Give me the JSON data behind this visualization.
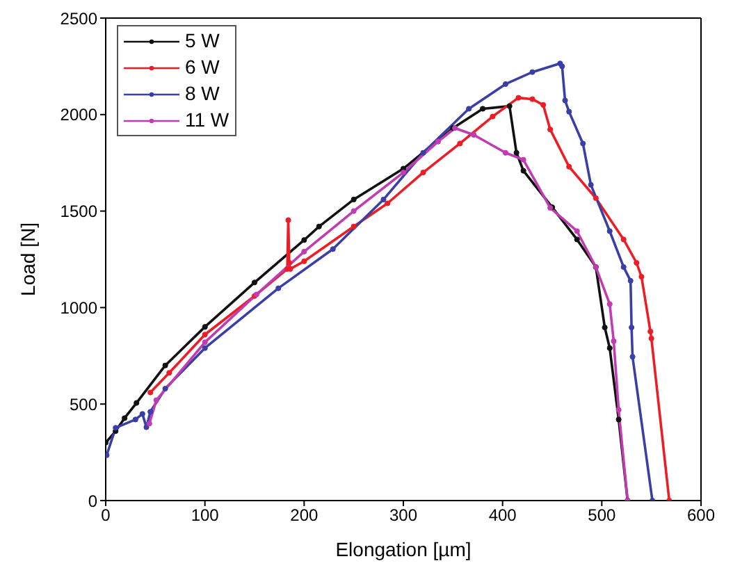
{
  "chart_data": {
    "type": "line",
    "xlabel": "Elongation [µm]",
    "ylabel": "Load [N]",
    "xlim": [
      0,
      600
    ],
    "ylim": [
      0,
      2500
    ],
    "xticks": [
      0,
      100,
      200,
      300,
      400,
      500,
      600
    ],
    "yticks": [
      0,
      500,
      1000,
      1500,
      2000,
      2500
    ],
    "legend": "top left",
    "marker": "circle",
    "line_style": "solid",
    "series": [
      {
        "name": "5 W",
        "color": "#111111",
        "x": [
          0,
          10,
          19,
          31,
          60,
          100,
          150,
          200,
          215,
          250,
          300,
          350,
          380,
          407,
          414,
          421,
          450,
          475,
          494,
          503,
          508,
          517,
          526
        ],
        "values": [
          300,
          360,
          427,
          506,
          700,
          900,
          1130,
          1350,
          1420,
          1560,
          1720,
          1930,
          2030,
          2044,
          1802,
          1709,
          1520,
          1353,
          1210,
          897,
          790,
          420,
          0
        ]
      },
      {
        "name": "6 W",
        "color": "#ee1c24",
        "x": [
          45,
          64,
          100,
          150,
          183,
          184,
          185,
          186,
          200,
          250,
          284,
          320,
          357,
          390,
          416,
          430,
          441,
          448,
          467,
          494,
          522,
          535,
          540,
          549,
          550,
          568
        ],
        "values": [
          560,
          662,
          860,
          1060,
          1200,
          1453,
          1232,
          1200,
          1240,
          1420,
          1540,
          1700,
          1850,
          1990,
          2087,
          2080,
          2050,
          1923,
          1730,
          1567,
          1353,
          1232,
          1160,
          876,
          840,
          0
        ]
      },
      {
        "name": "8 W",
        "color": "#3a3fa8",
        "x": [
          1,
          10,
          30,
          37,
          41,
          45,
          60,
          100,
          174,
          229,
          280,
          320,
          366,
          403,
          430,
          458,
          460,
          463,
          467,
          481,
          489,
          508,
          522,
          529,
          530,
          531,
          551
        ],
        "values": [
          235,
          377,
          420,
          449,
          380,
          460,
          580,
          790,
          1100,
          1303,
          1560,
          1802,
          2030,
          2158,
          2220,
          2265,
          2250,
          2073,
          2015,
          1850,
          1636,
          1396,
          1210,
          1139,
          897,
          745,
          0
        ]
      },
      {
        "name": "11 W",
        "color": "#c03cb0",
        "x": [
          44,
          51,
          100,
          152,
          200,
          250,
          300,
          335,
          352,
          371,
          403,
          421,
          448,
          475,
          494,
          508,
          512,
          517,
          526
        ],
        "values": [
          399,
          520,
          820,
          1068,
          1290,
          1500,
          1700,
          1860,
          1930,
          1895,
          1802,
          1766,
          1517,
          1396,
          1210,
          1018,
          826,
          470,
          0
        ]
      }
    ]
  }
}
